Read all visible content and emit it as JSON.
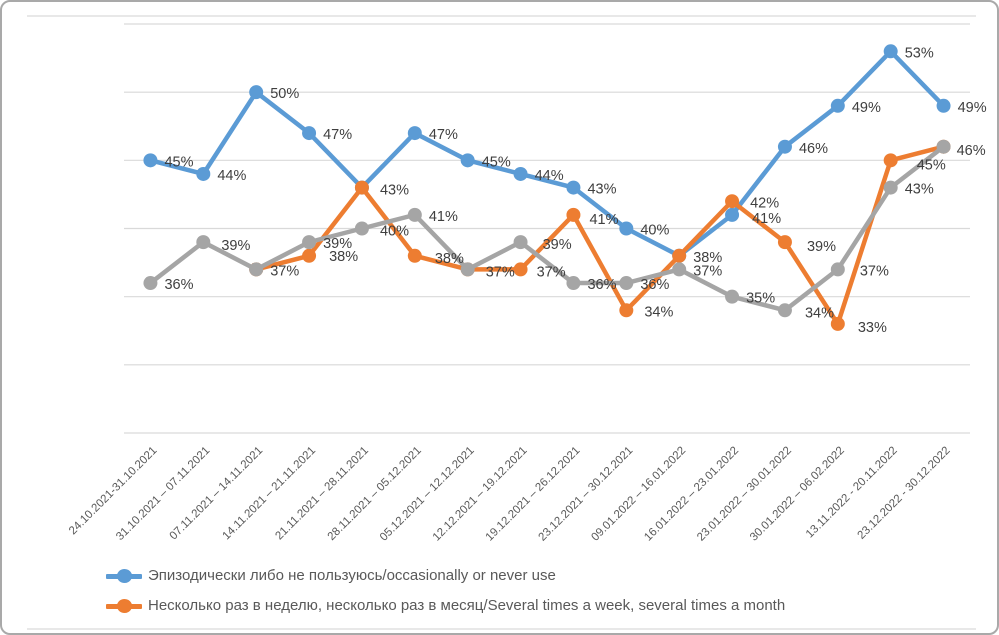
{
  "chart_data": {
    "type": "line",
    "title": "",
    "xlabel": "",
    "ylabel": "",
    "ylim": [
      25,
      55
    ],
    "gridline_step": 5,
    "grid": true,
    "y_axis_labels_visible": false,
    "legend_position": "bottom-left",
    "data_label_format": "{value}%",
    "categories": [
      "24.10.2021-31.10.2021",
      "31.10.2021 – 07.11.2021",
      "07.11.2021 – 14.11.2021",
      "14.11.2021 – 21.11.2021",
      "21.11.2021 – 28.11.2021",
      "28.11.2021 – 05.12.2021",
      "05.12.2021 – 12.12.2021",
      "12.12.2021 – 19.12.2021",
      "19.12.2021 – 26.12.2021",
      "23.12.2021 – 30.12.2021",
      "09.01.2022 – 16.01.2022",
      "16.01.2022 – 23.01.2022",
      "23.01.2022 – 30.01.2022",
      "30.01.2022 – 06.02.2022",
      "13.11.2022 - 20.11.2022",
      "23.12.2022 - 30.12.2022"
    ],
    "series": [
      {
        "name": "Эпизодически либо не пользуюсь/occasionally or never use",
        "color": "#5B9BD5",
        "in_legend": true,
        "values": [
          45,
          44,
          50,
          47,
          43,
          47,
          45,
          44,
          43,
          40,
          38,
          41,
          46,
          49,
          53,
          49
        ],
        "hidden_labels": []
      },
      {
        "name": "Несколько раз в неделю, несколько раз в месяц/Several times a week, several times a month",
        "color": "#ED7D31",
        "in_legend": true,
        "values": [
          null,
          null,
          37,
          38,
          43,
          38,
          37,
          37,
          41,
          34,
          38,
          42,
          39,
          33,
          45,
          46
        ],
        "hidden_labels": [
          2,
          4,
          6,
          10
        ]
      },
      {
        "name": "",
        "color": "#A5A5A5",
        "in_legend": false,
        "values": [
          36,
          39,
          37,
          39,
          40,
          41,
          37,
          39,
          36,
          36,
          37,
          35,
          34,
          37,
          43,
          46
        ],
        "hidden_labels": [
          15
        ]
      }
    ],
    "colors": {
      "gridline": "#D9D9D9",
      "frame_line": "#D9D9D9",
      "data_label_text": "#3F3F3F",
      "axis_label_text": "#595959",
      "legend_text": "#595959"
    }
  }
}
